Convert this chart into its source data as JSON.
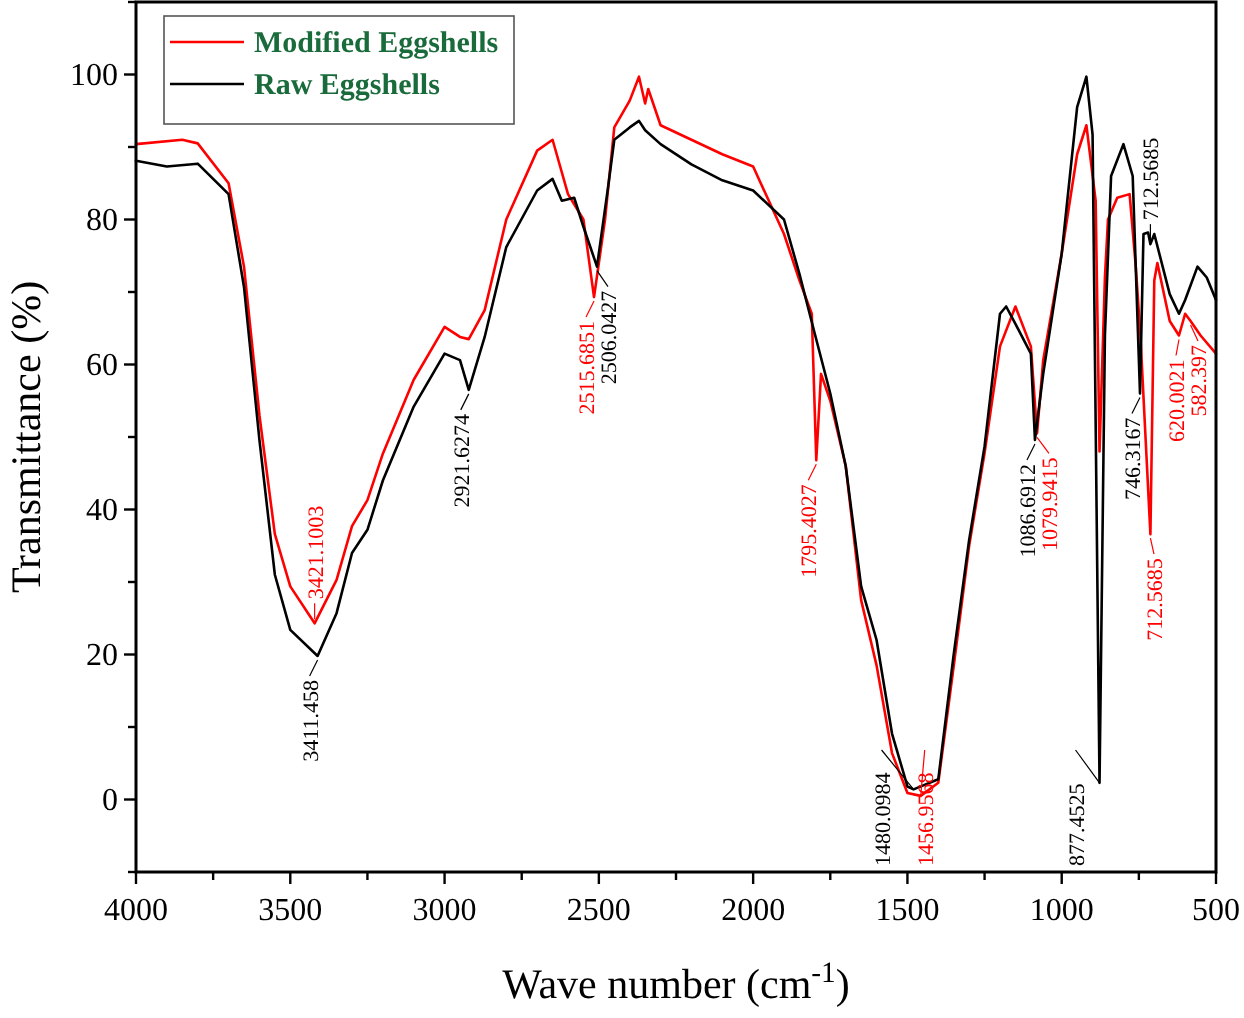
{
  "chart_data": {
    "type": "line",
    "xlabel": "Wave number (cm$^{-1}$)",
    "ylabel": "Transmittance (%)",
    "xlim": [
      4000,
      500
    ],
    "xticks": [
      4000,
      {
        "value": 3750,
        "label": null
      },
      3500,
      {
        "value": 3250,
        "label": null
      },
      3000,
      {
        "value": 2750,
        "label": null
      },
      2500,
      {
        "value": 2250,
        "label": null
      },
      2000,
      {
        "value": 1750,
        "label": null
      },
      1500,
      {
        "value": 1250,
        "label": null
      },
      1000,
      {
        "value": 750,
        "label": null
      },
      500
    ],
    "ylim": [
      -10,
      110
    ],
    "yticks": [
      {
        "value": -10,
        "label": null
      },
      0,
      {
        "value": 10,
        "label": null
      },
      20,
      {
        "value": 30,
        "label": null
      },
      40,
      {
        "value": 50,
        "label": null
      },
      60,
      {
        "value": 70,
        "label": null
      },
      80,
      {
        "value": 90,
        "label": null
      },
      100,
      {
        "value": 110,
        "label": null
      }
    ],
    "grid": false,
    "legend": "top left",
    "marker": "none",
    "line_style": "solid",
    "series": [
      {
        "name": "Modified Eggshells",
        "color": "#ff0000",
        "x": [
          4000,
          3850,
          3800,
          3700,
          3650,
          3600,
          3550,
          3500,
          3421.1003,
          3350,
          3300,
          3250,
          3200,
          3100,
          3000,
          2950,
          2921.6274,
          2870,
          2800,
          2700,
          2650,
          2600,
          2550,
          2515.6851,
          2480,
          2450,
          2400,
          2370,
          2350,
          2340,
          2300,
          2200,
          2100,
          2000,
          1900,
          1850,
          1810,
          1795.4027,
          1780,
          1750,
          1700,
          1650,
          1600,
          1550,
          1500,
          1456.9568,
          1400,
          1350,
          1300,
          1250,
          1200,
          1150,
          1100,
          1079.9415,
          1060,
          1000,
          950,
          920,
          890,
          877.4525,
          860,
          850,
          820,
          780,
          760,
          745,
          712.5685,
          700,
          690,
          650,
          620.0021,
          600,
          582.397,
          550,
          500
        ],
        "values": [
          90.4,
          91,
          90.5,
          85,
          73.5,
          53,
          36.6,
          29.4,
          24.3,
          30.3,
          37.7,
          41.3,
          47.7,
          57.9,
          65.2,
          63.8,
          63.5,
          67.5,
          80,
          89.5,
          91,
          83.5,
          80,
          69.3,
          80,
          92.7,
          96.4,
          99.7,
          96,
          98,
          93,
          91,
          89,
          87.3,
          78,
          71.6,
          67,
          46.8,
          58.7,
          55,
          46,
          27.5,
          18.5,
          6.4,
          0.9,
          0.5,
          2.3,
          18.4,
          35,
          47.8,
          62.5,
          68,
          62.5,
          50.5,
          60.6,
          75.3,
          89,
          93,
          82.6,
          48,
          72,
          80,
          83,
          83.5,
          73.5,
          64,
          36.6,
          71.6,
          74,
          66,
          64,
          67,
          66,
          64,
          61.5
        ]
      },
      {
        "name": "Raw Eggshells",
        "color": "#000000",
        "x": [
          4000,
          3900,
          3800,
          3700,
          3650,
          3600,
          3550,
          3500,
          3411.458,
          3350,
          3300,
          3250,
          3200,
          3100,
          3000,
          2950,
          2921.6274,
          2870,
          2800,
          2700,
          2650,
          2620,
          2580,
          2550,
          2506.0427,
          2470,
          2450,
          2400,
          2370,
          2350,
          2300,
          2200,
          2100,
          2000,
          1900,
          1850,
          1800,
          1750,
          1700,
          1650,
          1600,
          1550,
          1500,
          1480.0984,
          1400,
          1350,
          1300,
          1250,
          1200,
          1180,
          1150,
          1100,
          1086.6912,
          1060,
          1000,
          950,
          920,
          900,
          877.4525,
          860,
          840,
          800,
          770,
          746.3167,
          735,
          720,
          712.5685,
          700,
          650,
          620,
          600,
          560,
          530,
          500
        ],
        "values": [
          88.1,
          87.3,
          87.7,
          83.5,
          70.7,
          49.6,
          31,
          23.4,
          19.8,
          25.7,
          34,
          37.2,
          44,
          54.2,
          61.5,
          60.6,
          56.5,
          63.8,
          76.2,
          84,
          85.6,
          82.6,
          83,
          79,
          73.5,
          84.5,
          91,
          92.7,
          93.6,
          92.3,
          90.4,
          87.6,
          85.4,
          84,
          80,
          72.5,
          64.2,
          56,
          46,
          29.4,
          22,
          9.1,
          1.8,
          1.4,
          2.8,
          20,
          35.8,
          48.7,
          67,
          68,
          65.6,
          61.5,
          49.6,
          58.7,
          75.3,
          95.5,
          99.7,
          91.7,
          2.3,
          64,
          86,
          90.4,
          86,
          56,
          78,
          78.2,
          76.6,
          78,
          69.7,
          67,
          68.9,
          73.5,
          72,
          68.9
        ]
      }
    ],
    "annotations": [
      {
        "text": "3421.1003",
        "x": 3421.1003,
        "y": 24.3
      },
      {
        "text": "3411.458",
        "x": 3411.458,
        "y": 19.8
      },
      {
        "text": "2921.6274",
        "x": 2921.6274,
        "y": 56.5
      },
      {
        "text": "2515.6851",
        "x": 2515.6851,
        "y": 69.3
      },
      {
        "text": "2506.0427",
        "x": 2506.0427,
        "y": 73.5
      },
      {
        "text": "1795.4027",
        "x": 1795.4027,
        "y": 46.8
      },
      {
        "text": "1480.0984",
        "x": 1480.0984,
        "y": 1.4
      },
      {
        "text": "1456.9568",
        "x": 1456.9568,
        "y": 0.5
      },
      {
        "text": "1086.6912",
        "x": 1086.6912,
        "y": 49.6
      },
      {
        "text": "1079.9415",
        "x": 1079.9415,
        "y": 50.5
      },
      {
        "text": "877.4525",
        "x": 877.4525,
        "y": 2.3
      },
      {
        "text": "746.3167",
        "x": 746.3167,
        "y": 56
      },
      {
        "text": "712.5685",
        "x": 712.5685,
        "y": 76.6
      },
      {
        "text": "712.5685",
        "x": 712.5685,
        "y": 36.6
      },
      {
        "text": "620.0021",
        "x": 620.0021,
        "y": 64
      },
      {
        "text": "582.397",
        "x": 582.397,
        "y": 66
      }
    ]
  }
}
